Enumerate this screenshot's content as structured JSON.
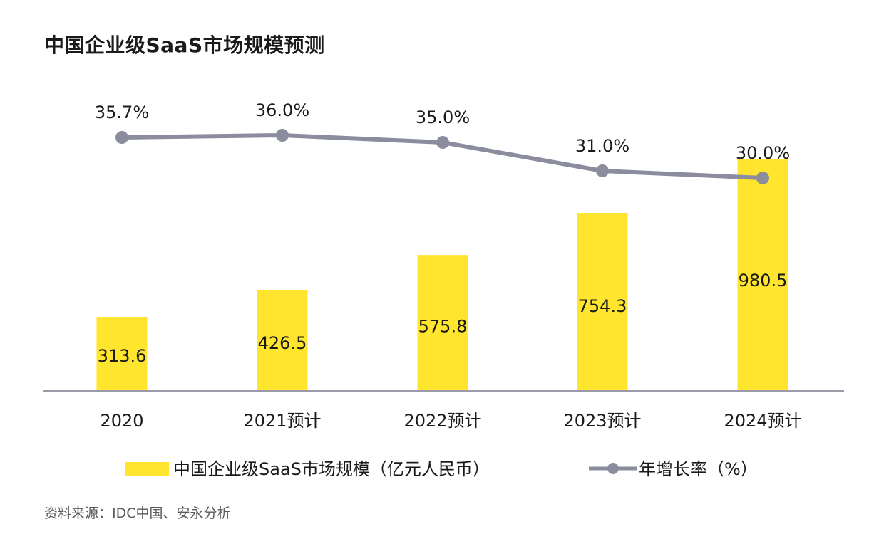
{
  "title": "中国企业级SaaS市场规模预测",
  "source": "资料来源：IDC中国、安永分析",
  "colors": {
    "bar": "#FFE52E",
    "line": "#8B8C9E",
    "axis": "#9A9AA8",
    "text": "#1a1a1a"
  },
  "chart_data": {
    "type": "bar",
    "title": "中国企业级SaaS市场规模预测",
    "categories": [
      "2020",
      "2021预计",
      "2022预计",
      "2023预计",
      "2024预计"
    ],
    "series": [
      {
        "name": "中国企业级SaaS市场规模（亿元人民币）",
        "type": "bar",
        "values": [
          313.6,
          426.5,
          575.8,
          754.3,
          980.5
        ],
        "labels": [
          "313.6",
          "426.5",
          "575.8",
          "754.3",
          "980.5"
        ]
      },
      {
        "name": "年增长率（%）",
        "type": "line",
        "values": [
          35.7,
          36.0,
          35.0,
          31.0,
          30.0
        ],
        "labels": [
          "35.7%",
          "36.0%",
          "35.0%",
          "31.0%",
          "30.0%"
        ]
      }
    ],
    "ylim_bar": [
      0,
      980.5
    ],
    "ylim_line": [
      30.0,
      36.0
    ],
    "legend": {
      "position": "bottom",
      "bar_label": "中国企业级SaaS市场规模（亿元人民币）",
      "line_label": "年增长率（%）"
    }
  }
}
